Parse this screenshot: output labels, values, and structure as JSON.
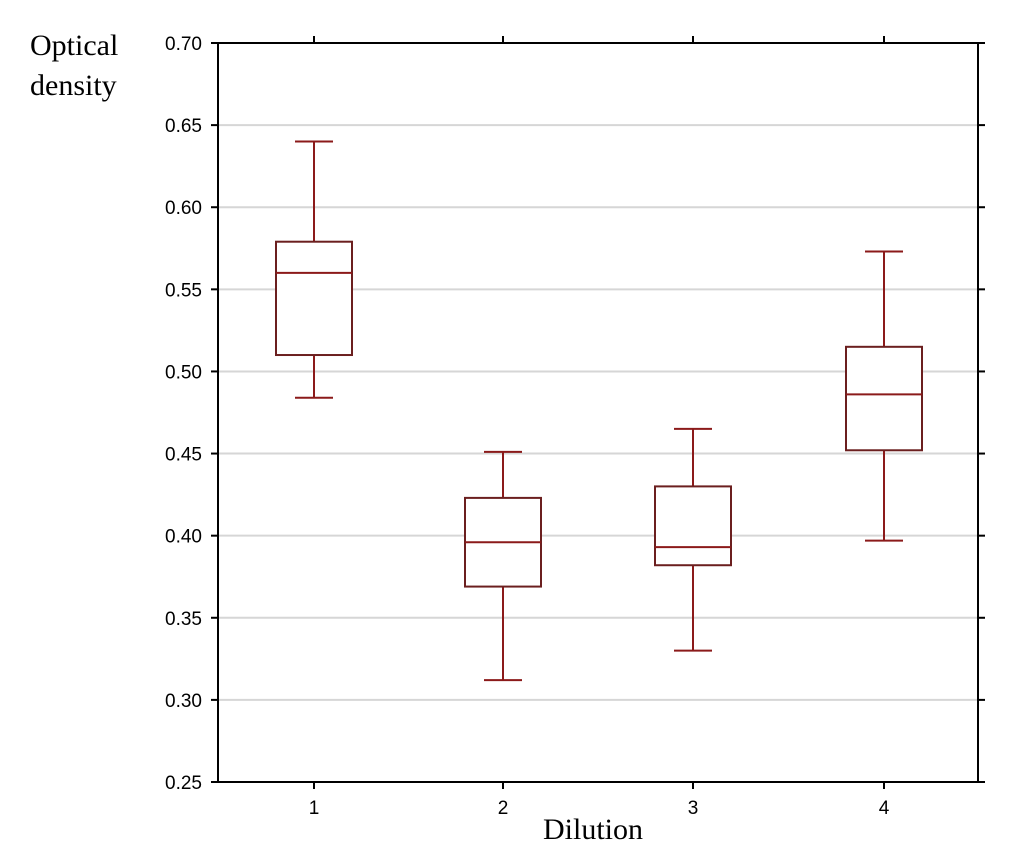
{
  "chart_data": {
    "type": "box",
    "xlabel": "Dilution",
    "ylabel": [
      "Optical",
      "density"
    ],
    "ylim": [
      0.25,
      0.7
    ],
    "yticks": [
      "0.25",
      "0.30",
      "0.35",
      "0.40",
      "0.45",
      "0.50",
      "0.55",
      "0.60",
      "0.65",
      "0.70"
    ],
    "categories": [
      "1",
      "2",
      "3",
      "4"
    ],
    "grid": "horizontal",
    "boxes": [
      {
        "category": "1",
        "whisker_low": 0.484,
        "q1": 0.51,
        "median": 0.56,
        "q3": 0.579,
        "whisker_high": 0.64
      },
      {
        "category": "2",
        "whisker_low": 0.312,
        "q1": 0.369,
        "median": 0.396,
        "q3": 0.423,
        "whisker_high": 0.451
      },
      {
        "category": "3",
        "whisker_low": 0.33,
        "q1": 0.382,
        "median": 0.393,
        "q3": 0.43,
        "whisker_high": 0.465
      },
      {
        "category": "4",
        "whisker_low": 0.397,
        "q1": 0.452,
        "median": 0.486,
        "q3": 0.515,
        "whisker_high": 0.573
      }
    ],
    "colors": {
      "box": "#6b1f1f",
      "whisker": "#8b1a1a",
      "median": "#8b1a1a"
    }
  }
}
